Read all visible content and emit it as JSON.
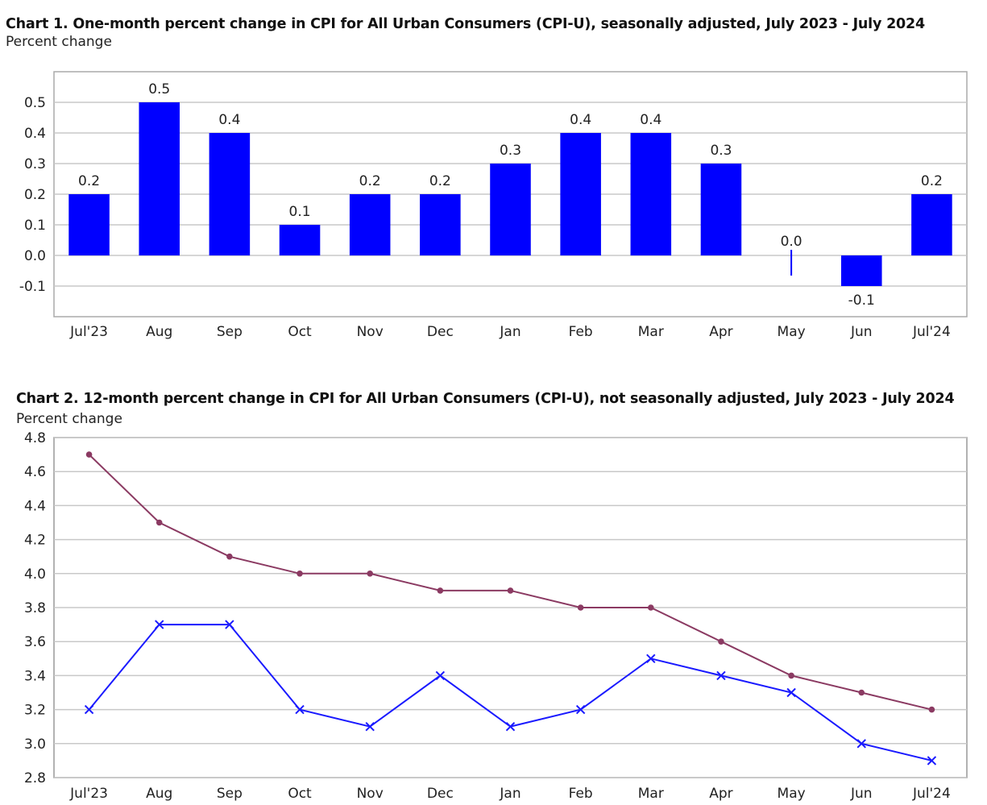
{
  "charts": [
    {
      "title": "Chart 1. One-month percent change in CPI for All Urban Consumers (CPI-U), seasonally adjusted, July 2023 - July 2024",
      "ylabel": "Percent change"
    },
    {
      "title": "Chart 2. 12-month percent change in CPI for All Urban Consumers (CPI-U), not seasonally adjusted, July 2023 - July 2024",
      "ylabel": "Percent change"
    }
  ],
  "chart_data": [
    {
      "type": "bar",
      "title": "Chart 1. One-month percent change in CPI for All Urban Consumers (CPI-U), seasonally adjusted, July 2023 - July 2024",
      "ylabel": "Percent change",
      "xlabel": "",
      "categories": [
        "Jul'23",
        "Aug",
        "Sep",
        "Oct",
        "Nov",
        "Dec",
        "Jan",
        "Feb",
        "Mar",
        "Apr",
        "May",
        "Jun",
        "Jul'24"
      ],
      "values": [
        0.2,
        0.5,
        0.4,
        0.1,
        0.2,
        0.2,
        0.3,
        0.4,
        0.4,
        0.3,
        0.0,
        -0.1,
        0.2
      ],
      "data_labels": [
        "0.2",
        "0.5",
        "0.4",
        "0.1",
        "0.2",
        "0.2",
        "0.3",
        "0.4",
        "0.4",
        "0.3",
        "0.0",
        "-0.1",
        "0.2"
      ],
      "yticks": [
        -0.1,
        0.0,
        0.1,
        0.2,
        0.3,
        0.4,
        0.5
      ],
      "ytick_labels": [
        "-0.1",
        "0.0",
        "0.1",
        "0.2",
        "0.3",
        "0.4",
        "0.5"
      ],
      "ylim": [
        -0.2,
        0.6
      ],
      "grid": true,
      "legend": "none",
      "colors": {
        "bar": "#0000ff",
        "grid": "#c8c8c8",
        "frame": "#aaaaaa"
      }
    },
    {
      "type": "line",
      "title": "Chart 2. 12-month percent change in CPI for All Urban Consumers (CPI-U), not seasonally adjusted, July 2023 - July 2024",
      "ylabel": "Percent change",
      "xlabel": "",
      "categories": [
        "Jul'23",
        "Aug",
        "Sep",
        "Oct",
        "Nov",
        "Dec",
        "Jan",
        "Feb",
        "Mar",
        "Apr",
        "May",
        "Jun",
        "Jul'24"
      ],
      "series": [
        {
          "values": [
            4.7,
            4.3,
            4.1,
            4.0,
            4.0,
            3.9,
            3.9,
            3.8,
            3.8,
            3.6,
            3.4,
            3.3,
            3.2
          ],
          "color": "#8b3a62",
          "marker": "dot"
        },
        {
          "values": [
            3.2,
            3.7,
            3.7,
            3.2,
            3.1,
            3.4,
            3.1,
            3.2,
            3.5,
            3.4,
            3.3,
            3.0,
            2.9
          ],
          "color": "#1a1aff",
          "marker": "x"
        }
      ],
      "yticks": [
        2.8,
        3.0,
        3.2,
        3.4,
        3.6,
        3.8,
        4.0,
        4.2,
        4.4,
        4.6,
        4.8
      ],
      "ytick_labels": [
        "2.8",
        "3.0",
        "3.2",
        "3.4",
        "3.6",
        "3.8",
        "4.0",
        "4.2",
        "4.4",
        "4.6",
        "4.8"
      ],
      "ylim": [
        2.8,
        4.8
      ],
      "grid": true,
      "legend": "none",
      "colors": {
        "grid": "#c8c8c8",
        "frame": "#999999"
      }
    }
  ]
}
